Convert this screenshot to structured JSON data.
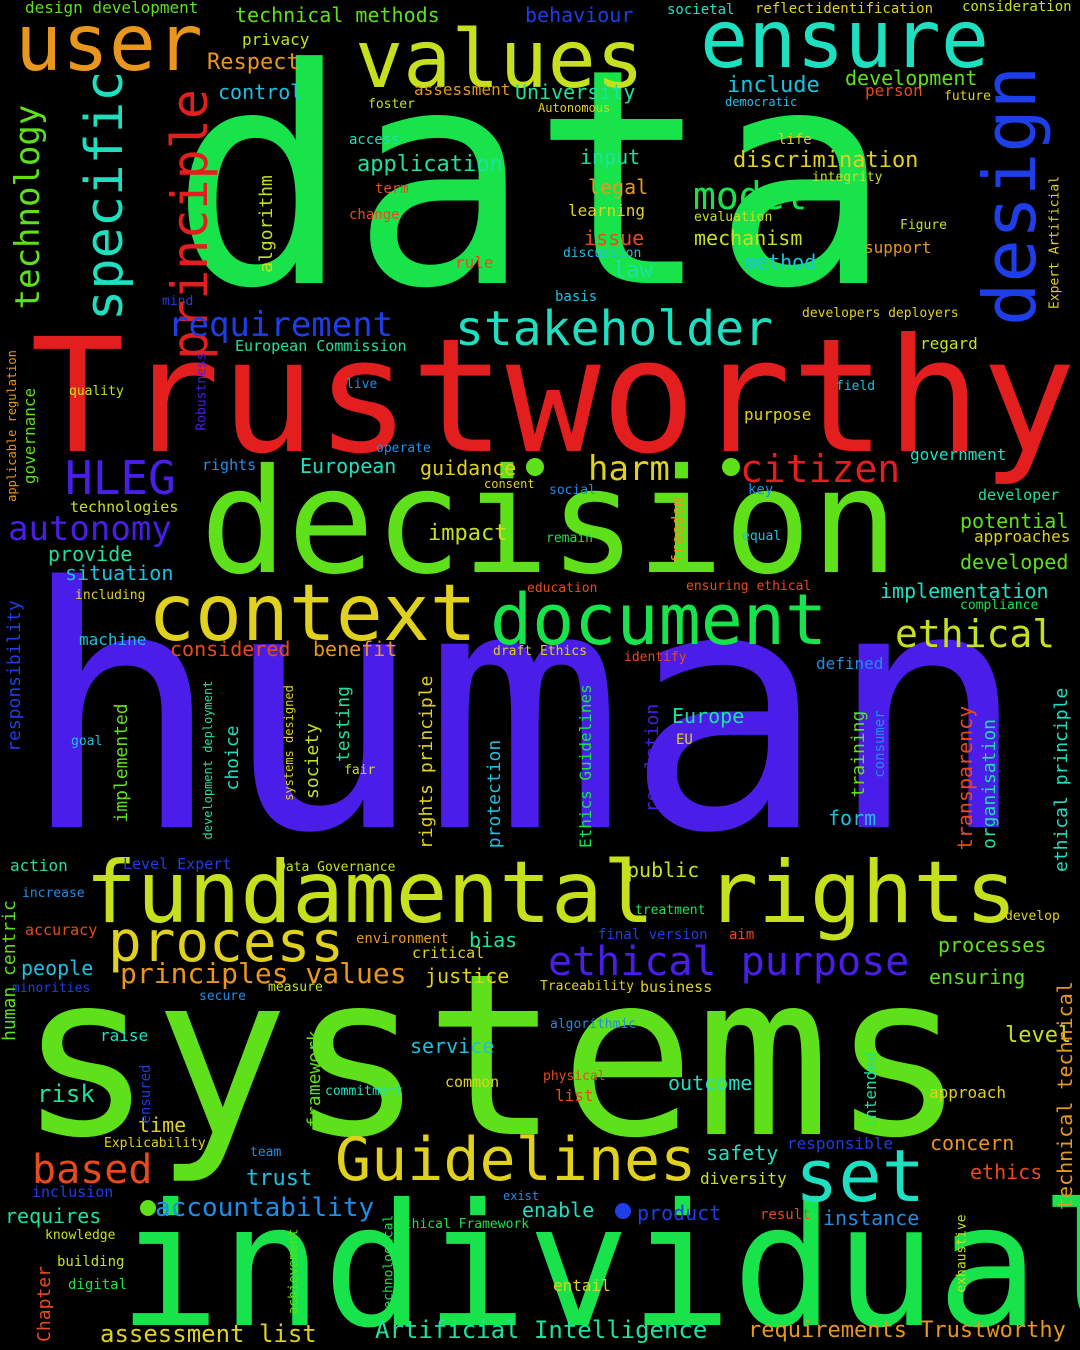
{
  "words": {
    "data": "data",
    "human": "human",
    "systems": "systems",
    "individual": "individual",
    "trustworthy": "Trustworthy",
    "decision": "decision",
    "fundamental_rights": "fundamental rights",
    "values": "values",
    "ensure": "ensure",
    "user": "user",
    "context": "context",
    "document": "document",
    "guidelines": "Guidelines",
    "design": "design",
    "process": "process",
    "set": "set",
    "stakeholder": "stakeholder",
    "specific": "specific",
    "principle": "principle",
    "technology": "technology",
    "hleg": "HLEG",
    "ethical_purpose": "ethical purpose",
    "requirement": "requirement",
    "autonomy": "autonomy",
    "citizen": "citizen",
    "harm": "harm",
    "ethical": "ethical",
    "model": "model",
    "based": "based",
    "accountability": "accountability",
    "artificial_intelligence": "Artificial Intelligence",
    "requirements_trustworthy": "requirements Trustworthy",
    "assessment_list": "assessment list",
    "principles_values": "principles values",
    "design_development": "design development",
    "technical_methods": "technical methods",
    "behaviour": "behaviour",
    "societal": "societal",
    "reflect": "reflect",
    "identification": "identification",
    "consideration": "consideration",
    "privacy": "privacy",
    "respect": "Respect",
    "control": "control",
    "assessment": "assessment",
    "university": "University",
    "autonomous": "Autonomous",
    "include": "include",
    "democratic": "democratic",
    "development": "development",
    "person": "person",
    "future": "future",
    "foster": "foster",
    "access": "access",
    "life": "life",
    "application": "application",
    "input": "input",
    "discrimination": "discrimination",
    "integrity": "integrity",
    "term": "term",
    "legal": "legal",
    "algorithm": "algorithm",
    "change": "change",
    "learning": "learning",
    "evaluation": "evaluation",
    "figure": "Figure",
    "issue": "issue",
    "mechanism": "mechanism",
    "support": "support",
    "discussion": "discussion",
    "rule": "rule",
    "law": "law",
    "method": "method",
    "mind": "mind",
    "basis": "basis",
    "developers_deployers": "developers deployers",
    "european_commission": "European Commission",
    "regard": "regard",
    "quality": "quality",
    "live": "live",
    "field": "field",
    "purpose": "purpose",
    "operate": "operate",
    "european": "European",
    "guidance": "guidance",
    "government": "government",
    "rights": "rights",
    "consent": "consent",
    "social": "social",
    "key": "key",
    "developer": "developer",
    "technologies": "technologies",
    "potential": "potential",
    "impact": "impact",
    "approaches": "approaches",
    "remain": "remain",
    "equal": "equal",
    "provide": "provide",
    "developed": "developed",
    "situation": "situation",
    "freedom": "freedom",
    "implementation": "implementation",
    "including": "including",
    "education": "education",
    "ensuring_ethical": "ensuring ethical",
    "compliance": "compliance",
    "machine": "machine",
    "considered": "considered",
    "benefit": "benefit",
    "draft_ethics": "draft Ethics",
    "identify": "identify",
    "defined": "defined",
    "europe": "Europe",
    "eu": "EU",
    "goal": "goal",
    "fair": "fair",
    "training": "training",
    "consumer": "consumer",
    "transparency": "transparency",
    "organisation": "organisation",
    "form": "form",
    "action": "action",
    "level_expert": "Level Expert",
    "data_governance": "Data Governance",
    "public": "public",
    "increase": "increase",
    "accuracy": "accuracy",
    "treatment": "treatment",
    "develop": "develop",
    "final_version": "final version",
    "aim": "aim",
    "environment": "environment",
    "bias": "bias",
    "critical": "critical",
    "processes": "processes",
    "people": "people",
    "justice": "justice",
    "ensuring": "ensuring",
    "minorities": "minorities",
    "traceability": "Traceability",
    "business": "business",
    "secure": "secure",
    "measure": "measure",
    "raise": "raise",
    "algorithmic": "algorithmic",
    "level": "level",
    "service": "service",
    "risk": "risk",
    "commitment": "commitment",
    "common": "common",
    "physical": "physical",
    "outcome": "outcome",
    "list": "list",
    "approach": "approach",
    "time": "time",
    "explicability": "Explicability",
    "responsible": "responsible",
    "concern": "concern",
    "team": "team",
    "safety": "safety",
    "trust": "trust",
    "ethics": "ethics",
    "diversity": "diversity",
    "inclusion": "inclusion",
    "exist": "exist",
    "requires": "requires",
    "enable": "enable",
    "product": "product",
    "result": "result",
    "instance": "instance",
    "knowledge": "knowledge",
    "ethical_framework": "Ethical Framework",
    "building": "building",
    "digital": "digital",
    "entail": "entail",
    "applicable_regulation": "applicable regulation",
    "governance": "governance",
    "robustness": "Robustness",
    "responsibility": "responsibility",
    "implemented": "implemented",
    "development_deployment": "development deployment",
    "choice": "choice",
    "systems_designed": "systems designed",
    "society": "society",
    "testing": "testing",
    "rights_principle": "rights principle",
    "protection": "protection",
    "ethics_guidelines": "Ethics Guidelines",
    "regulation": "regulation",
    "ethical_principle": "ethical principle",
    "expert_artificial": "Expert Artificial",
    "human_centric": "human centric",
    "framework": "framework",
    "ensured": "ensured",
    "intended": "intended",
    "technical_technical": "technical technical",
    "chapter": "Chapter",
    "achievement": "achievement",
    "technological": "technological",
    "exhaustive": "exhaustive"
  },
  "colors": {
    "green": "#19e34a",
    "blue": "#4a1ee8",
    "lime": "#5ee01a",
    "red": "#e31e1e",
    "yellowgreen": "#c6e01e",
    "yellow": "#e0d11e",
    "cyan": "#1ee0c0",
    "orange": "#e8961e"
  }
}
